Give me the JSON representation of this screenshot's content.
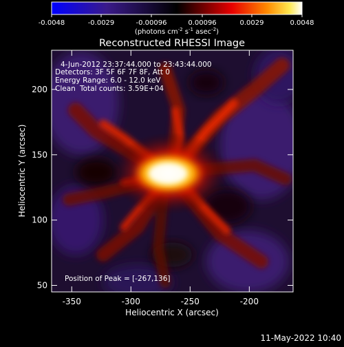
{
  "colorbar": {
    "ticks": [
      "-0.0048",
      "-0.0029",
      "-0.00096",
      "0.00096",
      "0.0029",
      "0.0048"
    ],
    "unit_prefix": "(photons cm",
    "unit_exp1": "-2",
    "unit_mid": " s",
    "unit_exp2": "-1",
    "unit_suffix": " asec",
    "unit_exp3": "-2",
    "unit_close": ")"
  },
  "image": {
    "title": "Reconstructed RHESSI Image",
    "info_lines": [
      "4-Jun-2012 23:37:44.000 to 23:43:44.000",
      "Detectors: 3F 5F 6F 7F 8F, Att 0",
      "Energy Range: 6.0 - 12.0 keV"
    ],
    "clean_label": "Clean",
    "total_counts": "Total counts: 3.59E+04",
    "peak": "Position of Peak = [-267,136]"
  },
  "footer": {
    "timestamp": "11-May-2022 10:40"
  },
  "colors": {
    "neg_low": "#0000ff",
    "neg_high": "#3c1c78",
    "zero": "#000000",
    "pos_mid": "#ff2800",
    "pos_high": "#ffffff"
  },
  "chart_data": {
    "type": "heatmap",
    "title": "Reconstructed RHESSI Image",
    "xlabel": "Heliocentric X (arcsec)",
    "ylabel": "Heliocentric Y (arcsec)",
    "xlim": [
      -367,
      -163
    ],
    "ylim": [
      45,
      230
    ],
    "x_ticks": [
      -350,
      -300,
      -250,
      -200
    ],
    "y_ticks": [
      50,
      100,
      150,
      200
    ],
    "colorbar_range": [
      -0.0048,
      0.0048
    ],
    "peak": {
      "x": -267,
      "y": 136
    }
  }
}
